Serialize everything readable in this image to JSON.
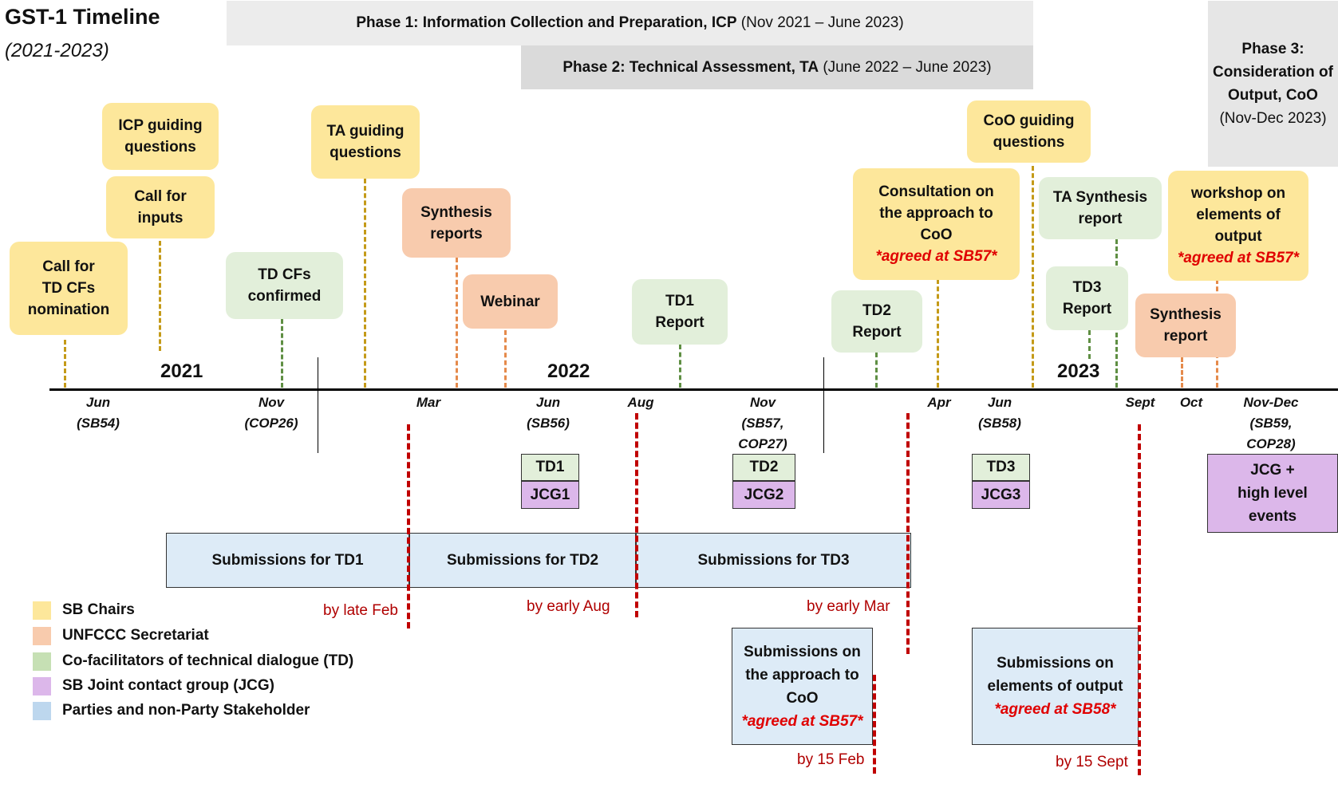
{
  "title": "GST-1 Timeline",
  "subtitle": "(2021-2023)",
  "phases": [
    {
      "name": "Phase 1: Information Collection and Preparation, ICP",
      "dates": "(Nov 2021 – June 2023)"
    },
    {
      "name": "Phase 2: Technical Assessment, TA",
      "dates": "(June 2022 – June 2023)"
    },
    {
      "name_lines": [
        "Phase 3:",
        "Consideration of",
        "Output, CoO"
      ],
      "dates": "(Nov-Dec 2023)"
    }
  ],
  "years": [
    "2021",
    "2022",
    "2023"
  ],
  "ticks": [
    {
      "month": "Jun",
      "detail": "(SB54)"
    },
    {
      "month": "Nov",
      "detail": "(COP26)"
    },
    {
      "month": "Mar",
      "detail": ""
    },
    {
      "month": "Jun",
      "detail": "(SB56)"
    },
    {
      "month": "Aug",
      "detail": ""
    },
    {
      "month": "Nov",
      "detail": "(SB57,",
      "detail2": "COP27)"
    },
    {
      "month": "Apr",
      "detail": ""
    },
    {
      "month": "Jun",
      "detail": "(SB58)"
    },
    {
      "month": "Sept",
      "detail": ""
    },
    {
      "month": "Oct",
      "detail": ""
    },
    {
      "month": "Nov-Dec",
      "detail": "(SB59,",
      "detail2": "COP28)"
    }
  ],
  "events": {
    "icp_questions": [
      "ICP guiding",
      "questions"
    ],
    "call_inputs": [
      "Call for",
      "inputs"
    ],
    "call_td_cfs": [
      "Call for",
      "TD CFs",
      "nomination"
    ],
    "td_cfs_confirmed": [
      "TD CFs",
      "confirmed"
    ],
    "ta_questions": [
      "TA guiding",
      "questions"
    ],
    "synthesis_reports": [
      "Synthesis",
      "reports"
    ],
    "webinar": "Webinar",
    "td1_report": [
      "TD1",
      "Report"
    ],
    "td2_report": [
      "TD2",
      "Report"
    ],
    "consultation": [
      "Consultation on",
      "the approach to",
      "CoO"
    ],
    "consultation_note": "*agreed at SB57*",
    "coo_questions": [
      "CoO guiding",
      "questions"
    ],
    "ta_synthesis": [
      "TA Synthesis",
      "report"
    ],
    "td3_report": [
      "TD3",
      "Report"
    ],
    "workshop": [
      "workshop on",
      "elements of",
      "output"
    ],
    "workshop_note": "*agreed at SB57*",
    "synthesis_report": [
      "Synthesis",
      "report"
    ]
  },
  "meetings": {
    "td1": "TD1",
    "jcg1": "JCG1",
    "td2": "TD2",
    "jcg2": "JCG2",
    "td3": "TD3",
    "jcg3": "JCG3",
    "jcg_high": [
      "JCG +",
      "high level",
      "events"
    ]
  },
  "submissions": {
    "td1": "Submissions for TD1",
    "td2": "Submissions for TD2",
    "td3": "Submissions for TD3",
    "coo": [
      "Submissions on",
      "the approach to",
      "CoO"
    ],
    "coo_note": "*agreed at SB57*",
    "elements": [
      "Submissions on",
      "elements of output"
    ],
    "elements_note": "*agreed at SB58*"
  },
  "deadlines": [
    "by late Feb",
    "by early Aug",
    "by early Mar",
    "by 15 Feb",
    "by 15 Sept"
  ],
  "legend": [
    {
      "label": "SB Chairs",
      "color": "#fde79b"
    },
    {
      "label": "UNFCCC Secretariat",
      "color": "#f8cbad"
    },
    {
      "label": "Co-facilitators of technical dialogue (TD)",
      "color": "#c6e0b4"
    },
    {
      "label": "SB Joint contact group (JCG)",
      "color": "#dcb7ea"
    },
    {
      "label": "Parties and non-Party Stakeholder",
      "color": "#bdd7ee"
    }
  ]
}
